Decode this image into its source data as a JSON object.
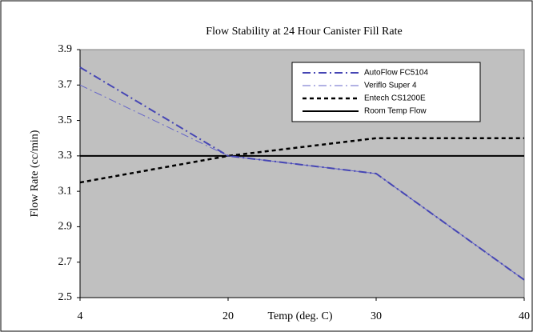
{
  "chart_data": {
    "type": "line",
    "title": "Flow Stability at 24 Hour Canister Fill Rate",
    "x_label": "Temp (deg. C)",
    "y_label": "Flow Rate (cc/min)",
    "categories": [
      "4",
      "20",
      "30",
      "40"
    ],
    "ylim": [
      2.5,
      3.9
    ],
    "yticks": [
      2.5,
      2.7,
      2.9,
      3.1,
      3.3,
      3.5,
      3.7,
      3.9
    ],
    "grid": false,
    "series": [
      {
        "name": "AutoFlow FC5104",
        "color": "#4646b4",
        "dash": "dash-dot",
        "width": 2,
        "values": [
          3.8,
          3.3,
          3.2,
          2.6
        ]
      },
      {
        "name": "Veriflo Super 4",
        "color": "#6464c8",
        "dash": "dash-dot",
        "width": 1,
        "values": [
          3.7,
          3.3,
          3.2,
          2.6
        ]
      },
      {
        "name": "Entech CS1200E",
        "color": "#000000",
        "dash": "dash",
        "width": 2.5,
        "values": [
          3.15,
          3.3,
          3.4,
          3.4
        ]
      },
      {
        "name": "Room Temp Flow",
        "color": "#000000",
        "dash": "solid",
        "width": 2,
        "values": [
          3.3,
          3.3,
          3.3,
          3.3
        ]
      }
    ]
  }
}
